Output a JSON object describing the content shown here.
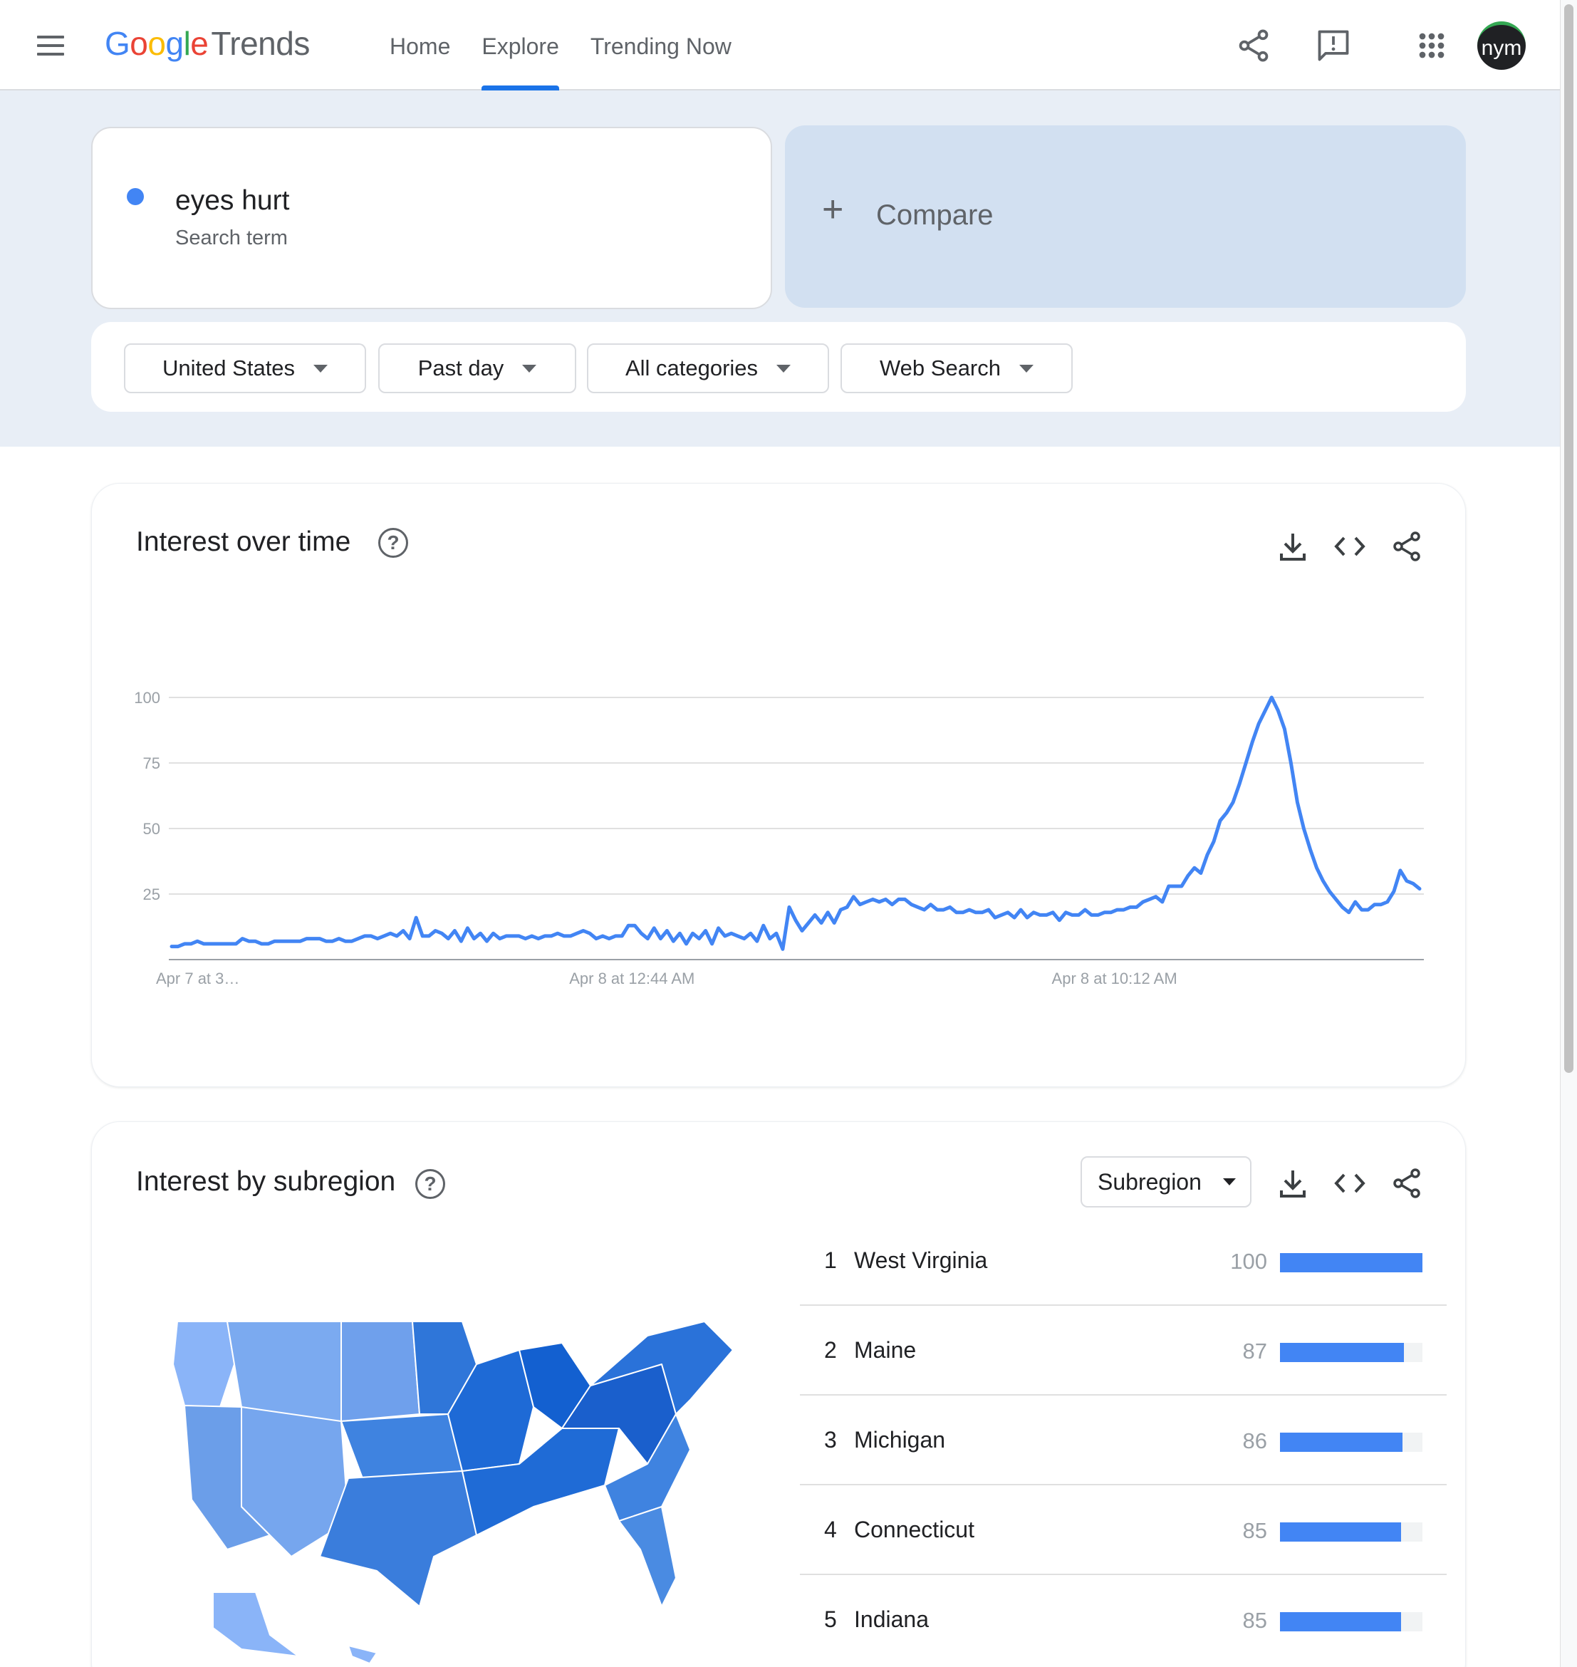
{
  "header": {
    "logo_letters": [
      "G",
      "o",
      "o",
      "g",
      "l",
      "e"
    ],
    "logo_suffix": "Trends",
    "nav": [
      "Home",
      "Explore",
      "Trending Now"
    ],
    "avatar_text": "nym"
  },
  "search": {
    "term": "eyes hurt",
    "term_type": "Search term",
    "compare_label": "Compare",
    "term_color": "#4285f4"
  },
  "filters": {
    "region": "United States",
    "time": "Past day",
    "category": "All categories",
    "property": "Web Search"
  },
  "interest_over_time": {
    "title": "Interest over time"
  },
  "chart_data": {
    "type": "line",
    "title": "Interest over time",
    "xlabel": "",
    "ylabel": "",
    "ylim": [
      0,
      100
    ],
    "y_ticks": [
      25,
      50,
      75,
      100
    ],
    "x_tick_labels": [
      "Apr 7 at 3…",
      "Apr 8 at 12:44 AM",
      "Apr 8 at 10:12 AM"
    ],
    "x_tick_index": [
      0,
      72,
      147
    ],
    "grid": true,
    "series": [
      {
        "name": "eyes hurt",
        "color": "#4285f4",
        "values": [
          5,
          5,
          6,
          6,
          7,
          6,
          6,
          6,
          6,
          6,
          6,
          8,
          7,
          7,
          6,
          6,
          7,
          7,
          7,
          7,
          7,
          8,
          8,
          8,
          7,
          7,
          8,
          7,
          7,
          8,
          9,
          9,
          8,
          9,
          10,
          9,
          11,
          8,
          16,
          9,
          9,
          11,
          10,
          8,
          11,
          7,
          12,
          8,
          10,
          7,
          10,
          8,
          9,
          9,
          9,
          8,
          9,
          8,
          9,
          9,
          10,
          9,
          9,
          10,
          11,
          10,
          8,
          9,
          8,
          9,
          9,
          13,
          13,
          10,
          8,
          12,
          8,
          11,
          7,
          10,
          6,
          10,
          8,
          11,
          6,
          12,
          9,
          10,
          9,
          8,
          10,
          7,
          13,
          8,
          10,
          4,
          20,
          15,
          11,
          14,
          17,
          14,
          18,
          14,
          19,
          20,
          24,
          21,
          22,
          23,
          22,
          23,
          21,
          23,
          23,
          21,
          20,
          19,
          21,
          19,
          19,
          20,
          18,
          18,
          19,
          18,
          18,
          19,
          16,
          17,
          18,
          16,
          19,
          16,
          18,
          17,
          17,
          18,
          15,
          18,
          17,
          17,
          19,
          17,
          17,
          18,
          18,
          19,
          19,
          20,
          20,
          22,
          23,
          24,
          22,
          28,
          28,
          28,
          32,
          35,
          33,
          40,
          45,
          53,
          56,
          60,
          67,
          75,
          83,
          90,
          95,
          100,
          95,
          88,
          75,
          60,
          50,
          42,
          35,
          30,
          26,
          23,
          20,
          18,
          22,
          19,
          19,
          21,
          21,
          22,
          26,
          34,
          30,
          29,
          27
        ]
      }
    ]
  },
  "interest_by_subregion": {
    "title": "Interest by subregion",
    "select_label": "Subregion",
    "rows": [
      {
        "rank": "1",
        "name": "West Virginia",
        "value": 100
      },
      {
        "rank": "2",
        "name": "Maine",
        "value": 87
      },
      {
        "rank": "3",
        "name": "Michigan",
        "value": 86
      },
      {
        "rank": "4",
        "name": "Connecticut",
        "value": 85
      },
      {
        "rank": "5",
        "name": "Indiana",
        "value": 85
      }
    ]
  },
  "icons": {
    "menu": "hamburger-menu-icon",
    "share": "share-icon",
    "feedback": "feedback-icon",
    "apps": "apps-grid-icon",
    "download": "download-icon",
    "embed": "embed-code-icon",
    "help": "help-icon",
    "plus": "plus-icon"
  },
  "colors": {
    "accent": "#1a73e8",
    "series": "#4285f4",
    "band_bg": "#e8eef6",
    "compare_bg": "#d2e0f1"
  }
}
